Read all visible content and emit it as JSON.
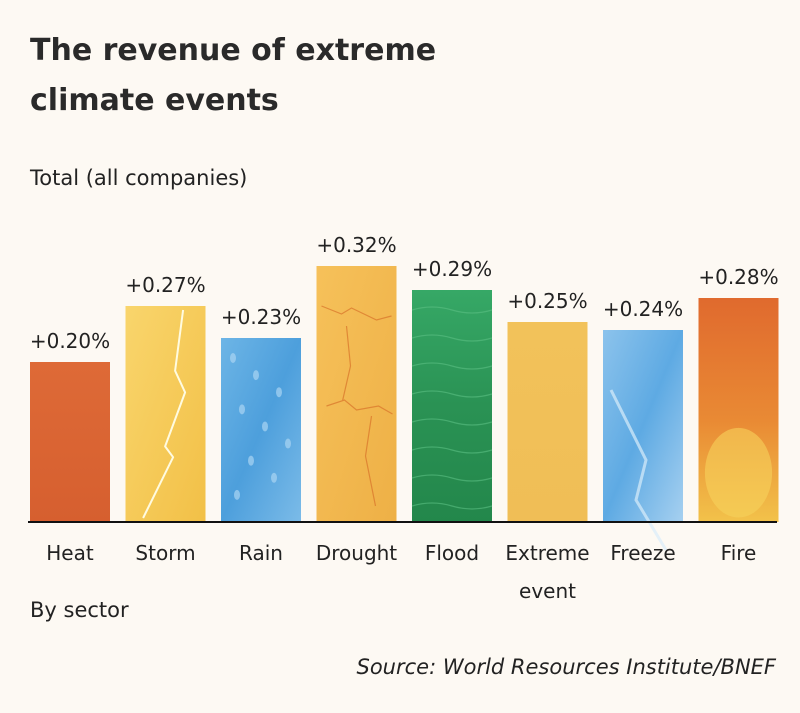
{
  "title": "The revenue of extreme climate events",
  "subtitle": "Total (all companies)",
  "footer_label": "By sector",
  "source": "Source: World Resources Institute/BNEF",
  "chart_data": {
    "type": "bar",
    "title": "The revenue of extreme climate events",
    "subtitle": "Total (all companies)",
    "xlabel": "By sector",
    "ylabel": "",
    "ylim": [
      0,
      0.32
    ],
    "grid": false,
    "categories": [
      "Heat",
      "Storm",
      "Rain",
      "Drought",
      "Flood",
      "Extreme event",
      "Freeze",
      "Fire"
    ],
    "category_lines": [
      [
        "Heat"
      ],
      [
        "Storm"
      ],
      [
        "Rain"
      ],
      [
        "Drought"
      ],
      [
        "Flood"
      ],
      [
        "Extreme",
        "event"
      ],
      [
        "Freeze"
      ],
      [
        "Fire"
      ]
    ],
    "values": [
      0.2,
      0.27,
      0.23,
      0.32,
      0.29,
      0.25,
      0.24,
      0.28
    ],
    "labels": [
      "+0.20%",
      "+0.27%",
      "+0.23%",
      "+0.32%",
      "+0.29%",
      "+0.25%",
      "+0.24%",
      "+0.28%"
    ],
    "bar_fills": [
      "heat",
      "storm",
      "rain",
      "drought",
      "flood",
      "extreme",
      "freeze",
      "fire"
    ],
    "colors": {
      "heat": "#dc6534",
      "storm": "#f4c44e",
      "rain": "#5aa8e0",
      "drought": "#f0b64c",
      "flood": "#2e9a5c",
      "extreme": "#f2c158",
      "freeze": "#6cb1e6",
      "fire": "#e07a32",
      "axis": "#111111"
    }
  }
}
